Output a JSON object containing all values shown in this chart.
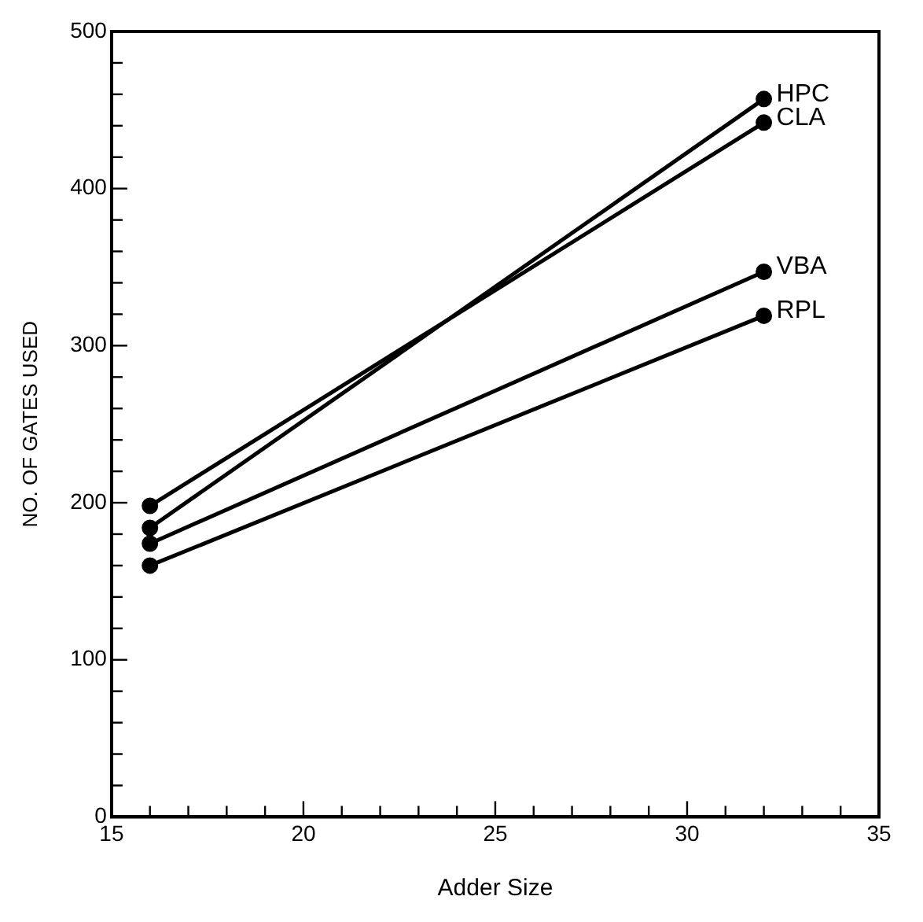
{
  "chart_data": {
    "type": "line",
    "xlabel": "Adder Size",
    "ylabel": "NO. OF GATES USED",
    "x": [
      16,
      32
    ],
    "series": [
      {
        "name": "HPC",
        "color": "#000000",
        "values": [
          184,
          457
        ]
      },
      {
        "name": "CLA",
        "color": "#000000",
        "values": [
          198,
          442
        ]
      },
      {
        "name": "VBA",
        "color": "#000000",
        "values": [
          174,
          347
        ]
      },
      {
        "name": "RPL",
        "color": "#000000",
        "values": [
          160,
          319
        ]
      }
    ],
    "xlim": [
      15,
      35
    ],
    "xticks": [
      15,
      {
        "value": 16,
        "label": null
      },
      {
        "value": 17,
        "label": null
      },
      {
        "value": 18,
        "label": null
      },
      {
        "value": 19,
        "label": null
      },
      20,
      {
        "value": 21,
        "label": null
      },
      {
        "value": 22,
        "label": null
      },
      {
        "value": 23,
        "label": null
      },
      {
        "value": 24,
        "label": null
      },
      25,
      {
        "value": 26,
        "label": null
      },
      {
        "value": 27,
        "label": null
      },
      {
        "value": 28,
        "label": null
      },
      {
        "value": 29,
        "label": null
      },
      30,
      {
        "value": 31,
        "label": null
      },
      {
        "value": 32,
        "label": null
      },
      {
        "value": 33,
        "label": null
      },
      {
        "value": 34,
        "label": null
      },
      35
    ],
    "ylim": [
      0,
      500
    ],
    "yticks": [
      0,
      {
        "value": 20,
        "label": null
      },
      {
        "value": 40,
        "label": null
      },
      {
        "value": 60,
        "label": null
      },
      {
        "value": 80,
        "label": null
      },
      100,
      {
        "value": 120,
        "label": null
      },
      {
        "value": 140,
        "label": null
      },
      {
        "value": 160,
        "label": null
      },
      {
        "value": 180,
        "label": null
      },
      200,
      {
        "value": 220,
        "label": null
      },
      {
        "value": 240,
        "label": null
      },
      {
        "value": 260,
        "label": null
      },
      {
        "value": 280,
        "label": null
      },
      300,
      {
        "value": 320,
        "label": null
      },
      {
        "value": 340,
        "label": null
      },
      {
        "value": 360,
        "label": null
      },
      {
        "value": 380,
        "label": null
      },
      400,
      {
        "value": 420,
        "label": null
      },
      {
        "value": 440,
        "label": null
      },
      {
        "value": 460,
        "label": null
      },
      {
        "value": 480,
        "label": null
      },
      500
    ],
    "legend": false,
    "marker": "circle",
    "line_style": "solid"
  }
}
